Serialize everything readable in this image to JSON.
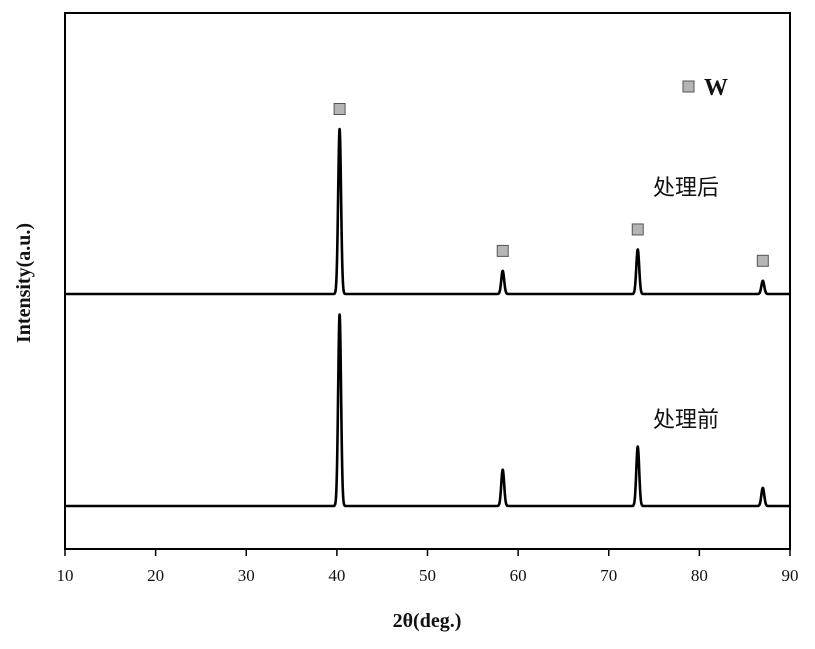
{
  "chart_data": {
    "type": "line",
    "xlabel": "2θ(deg.)",
    "ylabel": "Intensity(a.u.)",
    "xlim": [
      10,
      90
    ],
    "x_ticks": [
      10,
      20,
      30,
      40,
      50,
      60,
      70,
      80,
      90
    ],
    "y_ticks_shown": false,
    "grid": false,
    "legend": {
      "placement": "top-right",
      "entries": [
        {
          "label": "W",
          "marker": "square",
          "color": "#b5b5b5"
        }
      ]
    },
    "series": [
      {
        "name": "处理后",
        "peaks": [
          {
            "x": 40.3,
            "height": 1.0
          },
          {
            "x": 58.3,
            "height": 0.14
          },
          {
            "x": 73.2,
            "height": 0.27
          },
          {
            "x": 87.0,
            "height": 0.08
          }
        ]
      },
      {
        "name": "处理前",
        "peaks": [
          {
            "x": 40.3,
            "height": 1.16
          },
          {
            "x": 58.3,
            "height": 0.22
          },
          {
            "x": 73.2,
            "height": 0.36
          },
          {
            "x": 87.0,
            "height": 0.11
          }
        ]
      }
    ],
    "peak_markers": [
      {
        "x": 40.3,
        "phase": "W"
      },
      {
        "x": 58.3,
        "phase": "W"
      },
      {
        "x": 73.2,
        "phase": "W"
      },
      {
        "x": 87.0,
        "phase": "W"
      }
    ],
    "colors": {
      "line": "#000000",
      "marker_fill": "#b5b5b5",
      "marker_stroke": "#555555"
    }
  }
}
